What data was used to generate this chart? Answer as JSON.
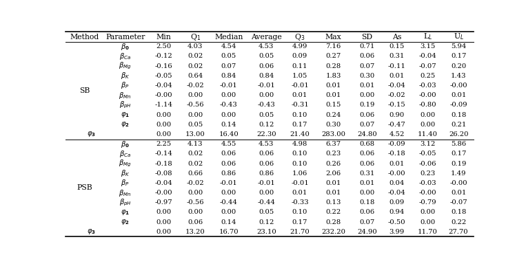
{
  "SB_rows": [
    [
      "2.50",
      "4.03",
      "4.54",
      "4.53",
      "4.99",
      "7.16",
      "0.71",
      "0.15",
      "3.15",
      "5.94"
    ],
    [
      "-0.12",
      "0.02",
      "0.05",
      "0.05",
      "0.09",
      "0.27",
      "0.06",
      "0.31",
      "-0.04",
      "0.17"
    ],
    [
      "-0.16",
      "0.02",
      "0.07",
      "0.06",
      "0.11",
      "0.28",
      "0.07",
      "-0.11",
      "-0.07",
      "0.20"
    ],
    [
      "-0.05",
      "0.64",
      "0.84",
      "0.84",
      "1.05",
      "1.83",
      "0.30",
      "0.01",
      "0.25",
      "1.43"
    ],
    [
      "-0.04",
      "-0.02",
      "-0.01",
      "-0.01",
      "-0.01",
      "0.01",
      "0.01",
      "-0.04",
      "-0.03",
      "-0.00"
    ],
    [
      "-0.00",
      "0.00",
      "0.00",
      "0.00",
      "0.01",
      "0.01",
      "0.00",
      "-0.02",
      "-0.00",
      "0.01"
    ],
    [
      "-1.14",
      "-0.56",
      "-0.43",
      "-0.43",
      "-0.31",
      "0.15",
      "0.19",
      "-0.15",
      "-0.80",
      "-0.09"
    ],
    [
      "0.00",
      "0.00",
      "0.00",
      "0.05",
      "0.10",
      "0.24",
      "0.06",
      "0.90",
      "0.00",
      "0.18"
    ],
    [
      "0.00",
      "0.05",
      "0.14",
      "0.12",
      "0.17",
      "0.30",
      "0.07",
      "-0.47",
      "0.00",
      "0.21"
    ],
    [
      "0.00",
      "13.00",
      "16.40",
      "22.30",
      "21.40",
      "283.00",
      "24.80",
      "4.52",
      "11.40",
      "26.20"
    ]
  ],
  "PSB_rows": [
    [
      "2.25",
      "4.13",
      "4.55",
      "4.53",
      "4.98",
      "6.37",
      "0.68",
      "-0.09",
      "3.12",
      "5.86"
    ],
    [
      "-0.14",
      "0.02",
      "0.06",
      "0.06",
      "0.10",
      "0.23",
      "0.06",
      "-0.18",
      "-0.05",
      "0.17"
    ],
    [
      "-0.18",
      "0.02",
      "0.06",
      "0.06",
      "0.10",
      "0.26",
      "0.06",
      "0.01",
      "-0.06",
      "0.19"
    ],
    [
      "-0.08",
      "0.66",
      "0.86",
      "0.86",
      "1.06",
      "2.06",
      "0.31",
      "-0.00",
      "0.23",
      "1.49"
    ],
    [
      "-0.04",
      "-0.02",
      "-0.01",
      "-0.01",
      "-0.01",
      "0.01",
      "0.01",
      "0.04",
      "-0.03",
      "-0.00"
    ],
    [
      "-0.00",
      "0.00",
      "0.00",
      "0.00",
      "0.01",
      "0.01",
      "0.00",
      "-0.04",
      "-0.00",
      "0.01"
    ],
    [
      "-0.97",
      "-0.56",
      "-0.44",
      "-0.44",
      "-0.33",
      "0.13",
      "0.18",
      "0.09",
      "-0.79",
      "-0.07"
    ],
    [
      "0.00",
      "0.00",
      "0.00",
      "0.05",
      "0.10",
      "0.22",
      "0.06",
      "0.94",
      "0.00",
      "0.18"
    ],
    [
      "0.00",
      "0.06",
      "0.14",
      "0.12",
      "0.17",
      "0.28",
      "0.07",
      "-0.50",
      "0.00",
      "0.22"
    ],
    [
      "0.00",
      "13.20",
      "16.70",
      "23.10",
      "21.70",
      "232.20",
      "24.90",
      "3.99",
      "11.70",
      "27.70"
    ]
  ],
  "SB_label": "SB",
  "PSB_label": "PSB",
  "bg_color": "#ffffff",
  "font_size": 7.2,
  "header_font_size": 7.8
}
